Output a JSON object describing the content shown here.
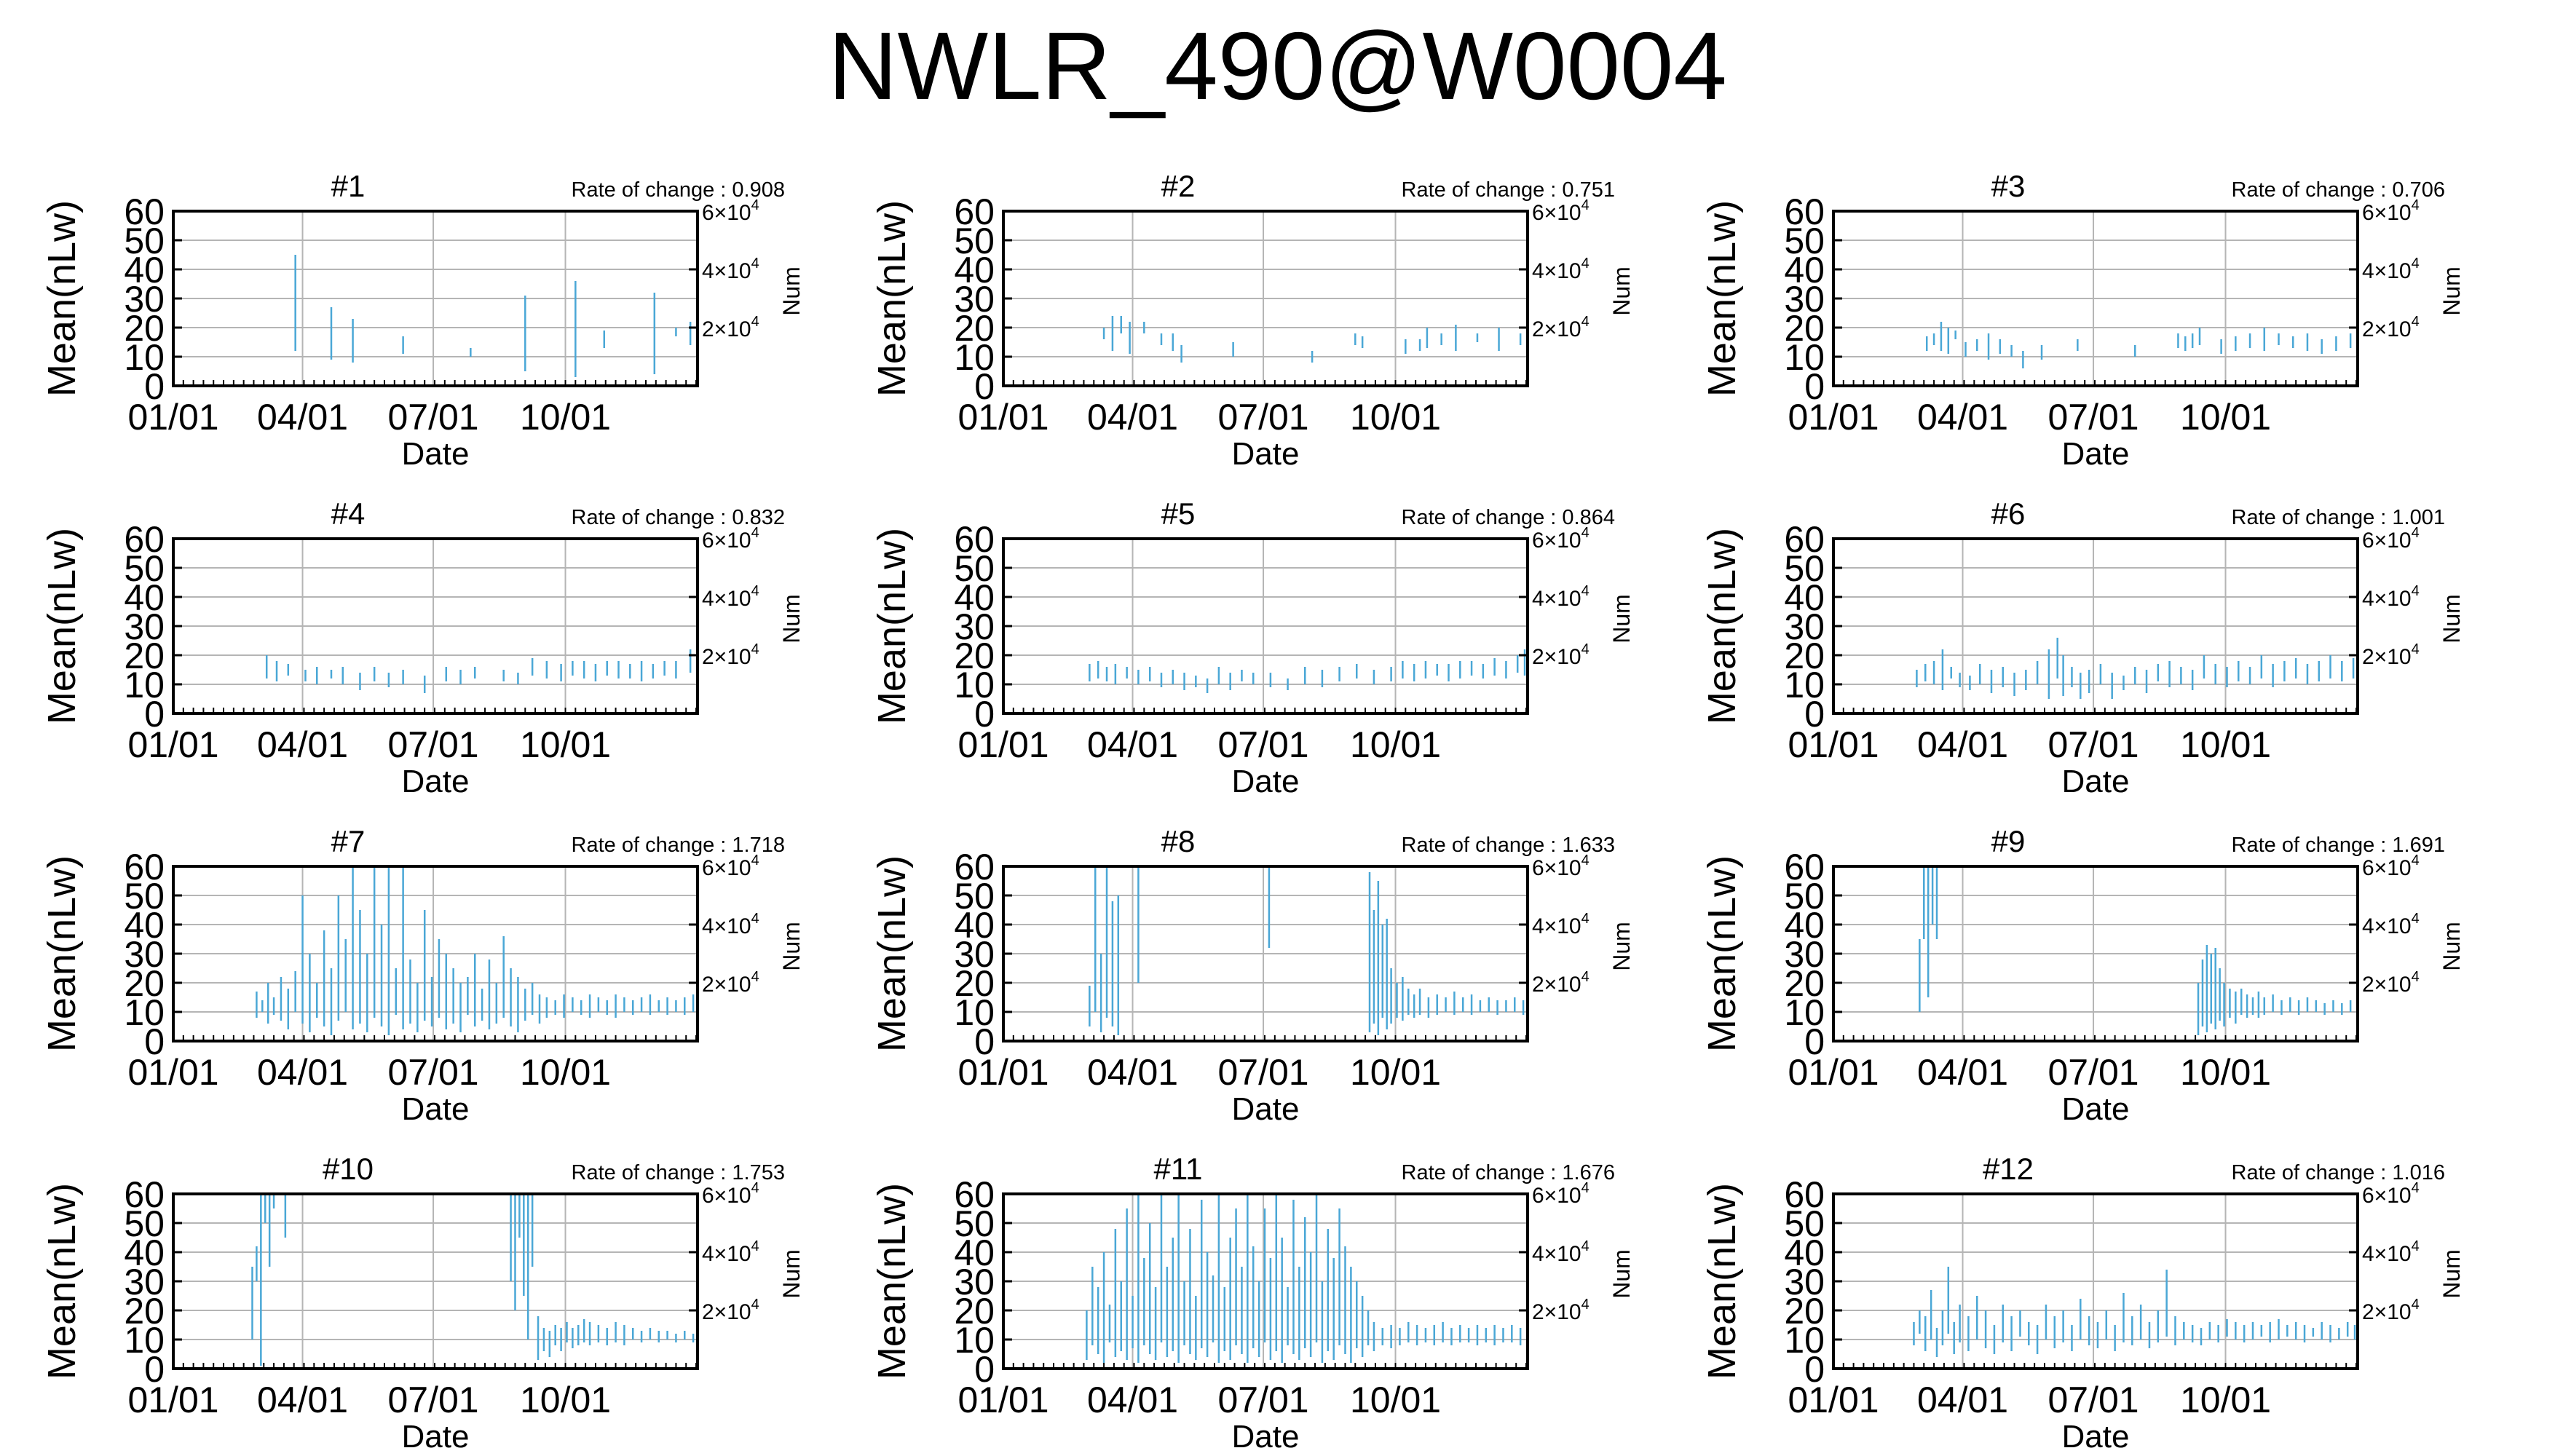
{
  "title": "NWLR_490@W0004",
  "colors": {
    "data": "#4aa7d6",
    "grid": "#b5b5b5",
    "frame": "#000000"
  },
  "common": {
    "ylabel": "Mean(nLw)",
    "y2label": "Num",
    "xlabel": "Date",
    "xticks": [
      "01/01",
      "04/01",
      "07/01",
      "10/01"
    ],
    "xtick_days": [
      0,
      90,
      181,
      273
    ],
    "xlim": [
      0,
      365
    ],
    "ylim": [
      0,
      60
    ],
    "yticks": [
      "0",
      "10",
      "20",
      "30",
      "40",
      "50",
      "60"
    ],
    "y2lim": [
      0,
      60000
    ],
    "y2ticks": [
      {
        "value": 20000,
        "mant": "2",
        "exp": "4"
      },
      {
        "value": 40000,
        "mant": "4",
        "exp": "4"
      },
      {
        "value": 60000,
        "mant": "6",
        "exp": "4"
      }
    ],
    "y2_base": "×10"
  },
  "chart_data": [
    {
      "type": "bar",
      "name": "#1",
      "rate_label": "Rate of change : 0.908",
      "x": [
        85,
        110,
        125,
        160,
        207,
        245,
        280,
        300,
        335,
        350,
        360
      ],
      "low": [
        12,
        9,
        8,
        11,
        10,
        5,
        3,
        13,
        4,
        17,
        14
      ],
      "high": [
        45,
        27,
        23,
        17,
        13,
        31,
        36,
        19,
        32,
        20,
        22
      ]
    },
    {
      "type": "bar",
      "name": "#2",
      "rate_label": "Rate of change : 0.751",
      "x": [
        70,
        76,
        82,
        88,
        98,
        110,
        118,
        124,
        160,
        215,
        245,
        250,
        280,
        290,
        295,
        305,
        315,
        330,
        345,
        360
      ],
      "low": [
        16,
        12,
        18,
        11,
        18,
        14,
        12,
        8,
        10,
        8,
        14,
        13,
        11,
        12,
        13,
        14,
        12,
        15,
        12,
        14
      ],
      "high": [
        20,
        24,
        24,
        22,
        22,
        18,
        18,
        14,
        15,
        12,
        18,
        17,
        16,
        16,
        20,
        18,
        21,
        18,
        20,
        18
      ]
    },
    {
      "type": "bar",
      "name": "#3",
      "rate_label": "Rate of change : 0.706",
      "x": [
        65,
        70,
        75,
        80,
        85,
        92,
        100,
        108,
        116,
        124,
        132,
        145,
        170,
        210,
        240,
        245,
        250,
        255,
        270,
        280,
        290,
        300,
        310,
        320,
        330,
        340,
        350,
        360
      ],
      "low": [
        12,
        14,
        12,
        11,
        16,
        10,
        12,
        9,
        11,
        10,
        6,
        9,
        12,
        10,
        13,
        12,
        13,
        14,
        11,
        12,
        13,
        12,
        14,
        13,
        12,
        11,
        12,
        13
      ],
      "high": [
        17,
        18,
        22,
        20,
        19,
        15,
        16,
        18,
        16,
        14,
        12,
        14,
        16,
        14,
        18,
        17,
        18,
        20,
        16,
        17,
        18,
        20,
        18,
        17,
        18,
        16,
        17,
        18
      ]
    },
    {
      "type": "bar",
      "name": "#4",
      "rate_label": "Rate of change : 0.832",
      "x": [
        65,
        72,
        80,
        92,
        100,
        110,
        118,
        130,
        140,
        150,
        160,
        175,
        190,
        200,
        210,
        230,
        240,
        250,
        260,
        270,
        278,
        286,
        294,
        302,
        310,
        318,
        326,
        334,
        342,
        350,
        360
      ],
      "low": [
        12,
        11,
        13,
        11,
        10,
        12,
        10,
        8,
        11,
        9,
        10,
        7,
        11,
        10,
        12,
        11,
        10,
        13,
        12,
        11,
        13,
        12,
        11,
        13,
        12,
        12,
        11,
        12,
        13,
        12,
        14
      ],
      "high": [
        20,
        18,
        17,
        15,
        16,
        15,
        16,
        14,
        16,
        14,
        15,
        13,
        16,
        15,
        16,
        15,
        14,
        19,
        18,
        17,
        18,
        18,
        17,
        18,
        18,
        17,
        18,
        17,
        18,
        18,
        22
      ]
    },
    {
      "type": "bar",
      "name": "#5",
      "rate_label": "Rate of change : 0.864",
      "x": [
        60,
        66,
        72,
        78,
        86,
        94,
        102,
        110,
        118,
        126,
        134,
        142,
        150,
        158,
        166,
        174,
        186,
        198,
        210,
        222,
        234,
        246,
        258,
        270,
        278,
        286,
        294,
        302,
        310,
        318,
        326,
        334,
        342,
        350,
        358,
        363
      ],
      "low": [
        11,
        12,
        11,
        10,
        12,
        10,
        11,
        9,
        10,
        8,
        9,
        7,
        10,
        8,
        11,
        10,
        9,
        8,
        10,
        9,
        11,
        12,
        10,
        11,
        12,
        11,
        12,
        13,
        11,
        12,
        13,
        12,
        13,
        12,
        14,
        13
      ],
      "high": [
        17,
        18,
        16,
        17,
        16,
        15,
        16,
        14,
        15,
        14,
        13,
        12,
        16,
        14,
        15,
        14,
        14,
        12,
        16,
        15,
        16,
        17,
        15,
        16,
        18,
        17,
        18,
        17,
        17,
        18,
        18,
        17,
        19,
        18,
        20,
        22
      ]
    },
    {
      "type": "bar",
      "name": "#6",
      "rate_label": "Rate of change : 1.001",
      "x": [
        58,
        64,
        70,
        76,
        82,
        88,
        95,
        102,
        110,
        118,
        126,
        134,
        142,
        150,
        156,
        160,
        166,
        172,
        178,
        186,
        194,
        202,
        210,
        218,
        226,
        234,
        242,
        250,
        258,
        266,
        274,
        282,
        290,
        298,
        306,
        314,
        322,
        330,
        338,
        346,
        354,
        362
      ],
      "low": [
        9,
        11,
        10,
        8,
        12,
        9,
        8,
        10,
        7,
        9,
        6,
        8,
        10,
        5,
        12,
        6,
        9,
        5,
        7,
        10,
        5,
        8,
        10,
        7,
        11,
        9,
        10,
        8,
        12,
        10,
        9,
        11,
        10,
        12,
        9,
        11,
        12,
        10,
        11,
        12,
        11,
        12
      ],
      "high": [
        15,
        17,
        18,
        22,
        16,
        14,
        13,
        17,
        15,
        16,
        14,
        15,
        18,
        22,
        26,
        20,
        16,
        14,
        15,
        17,
        14,
        13,
        16,
        15,
        17,
        18,
        16,
        15,
        20,
        17,
        16,
        18,
        16,
        20,
        17,
        18,
        19,
        17,
        18,
        20,
        18,
        19
      ]
    },
    {
      "type": "bar",
      "name": "#7",
      "rate_label": "Rate of change : 1.718",
      "x": [
        58,
        62,
        66,
        70,
        75,
        80,
        85,
        90,
        95,
        100,
        105,
        110,
        115,
        120,
        125,
        130,
        135,
        140,
        145,
        150,
        155,
        160,
        165,
        170,
        175,
        180,
        185,
        190,
        195,
        200,
        205,
        210,
        215,
        220,
        225,
        230,
        235,
        240,
        245,
        250,
        255,
        260,
        266,
        272,
        278,
        284,
        290,
        296,
        302,
        308,
        314,
        320,
        326,
        332,
        338,
        344,
        350,
        356,
        362
      ],
      "low": [
        8,
        10,
        6,
        9,
        7,
        4,
        10,
        6,
        3,
        8,
        5,
        2,
        7,
        10,
        4,
        6,
        3,
        8,
        5,
        2,
        9,
        4,
        6,
        3,
        7,
        5,
        8,
        4,
        6,
        3,
        9,
        5,
        7,
        4,
        6,
        8,
        5,
        3,
        7,
        9,
        6,
        8,
        9,
        8,
        10,
        9,
        8,
        10,
        9,
        8,
        10,
        9,
        10,
        9,
        10,
        9,
        10,
        9,
        10
      ],
      "high": [
        17,
        14,
        20,
        15,
        22,
        18,
        24,
        50,
        30,
        20,
        38,
        25,
        50,
        35,
        60,
        45,
        30,
        60,
        40,
        60,
        25,
        60,
        28,
        20,
        45,
        22,
        35,
        30,
        25,
        20,
        22,
        30,
        18,
        28,
        20,
        36,
        25,
        22,
        18,
        20,
        16,
        15,
        14,
        16,
        15,
        14,
        16,
        15,
        14,
        16,
        15,
        14,
        15,
        16,
        14,
        15,
        14,
        15,
        16
      ]
    },
    {
      "type": "bar",
      "name": "#8",
      "rate_label": "Rate of change : 1.633",
      "x": [
        60,
        64,
        68,
        72,
        76,
        80,
        94,
        185,
        255,
        258,
        261,
        264,
        267,
        270,
        274,
        278,
        282,
        286,
        290,
        296,
        302,
        308,
        314,
        320,
        326,
        332,
        338,
        344,
        350,
        356,
        362
      ],
      "low": [
        5,
        10,
        3,
        8,
        5,
        2,
        20,
        32,
        3,
        6,
        2,
        8,
        4,
        6,
        8,
        7,
        9,
        8,
        9,
        8,
        9,
        10,
        9,
        10,
        9,
        10,
        10,
        9,
        10,
        10,
        9
      ],
      "high": [
        19,
        60,
        30,
        60,
        48,
        50,
        60,
        60,
        58,
        45,
        55,
        40,
        42,
        25,
        20,
        22,
        18,
        16,
        18,
        15,
        16,
        15,
        17,
        15,
        16,
        14,
        15,
        14,
        14,
        15,
        14
      ]
    },
    {
      "type": "bar",
      "name": "#9",
      "rate_label": "Rate of change : 1.691",
      "x": [
        60,
        63,
        66,
        69,
        72,
        254,
        257,
        260,
        263,
        266,
        269,
        272,
        276,
        280,
        284,
        288,
        292,
        296,
        300,
        306,
        312,
        318,
        324,
        330,
        336,
        342,
        348,
        354,
        360
      ],
      "low": [
        10,
        35,
        15,
        40,
        35,
        2,
        5,
        3,
        6,
        4,
        7,
        5,
        8,
        6,
        9,
        8,
        9,
        8,
        9,
        10,
        9,
        10,
        9,
        10,
        10,
        9,
        10,
        9,
        10
      ],
      "high": [
        35,
        60,
        60,
        60,
        60,
        20,
        28,
        33,
        30,
        32,
        25,
        20,
        18,
        17,
        18,
        16,
        15,
        17,
        15,
        16,
        14,
        15,
        14,
        15,
        14,
        13,
        14,
        13,
        14
      ],
      "ylabel_hidden": false
    },
    {
      "type": "bar",
      "name": "#10",
      "rate_label": "Rate of change : 1.753",
      "x": [
        55,
        58,
        61,
        64,
        67,
        70,
        78,
        235,
        238,
        241,
        244,
        247,
        250,
        254,
        258,
        262,
        266,
        270,
        274,
        278,
        282,
        286,
        290,
        296,
        302,
        308,
        314,
        320,
        326,
        332,
        338,
        344,
        350,
        356,
        362
      ],
      "low": [
        10,
        30,
        1,
        50,
        35,
        55,
        45,
        30,
        20,
        45,
        25,
        10,
        35,
        3,
        6,
        4,
        8,
        6,
        9,
        7,
        8,
        9,
        8,
        9,
        8,
        9,
        8,
        10,
        9,
        10,
        9,
        10,
        9,
        10,
        9
      ],
      "high": [
        35,
        42,
        60,
        60,
        60,
        60,
        60,
        60,
        60,
        60,
        60,
        60,
        60,
        18,
        14,
        13,
        15,
        14,
        16,
        14,
        15,
        17,
        16,
        15,
        14,
        16,
        15,
        14,
        13,
        14,
        13,
        13,
        12,
        13,
        12
      ]
    },
    {
      "type": "bar",
      "name": "#11",
      "rate_label": "Rate of change : 1.676",
      "x": [
        58,
        62,
        66,
        70,
        74,
        78,
        82,
        86,
        90,
        94,
        98,
        102,
        106,
        110,
        114,
        118,
        122,
        126,
        130,
        134,
        138,
        142,
        146,
        150,
        154,
        158,
        162,
        166,
        170,
        174,
        178,
        182,
        186,
        190,
        194,
        198,
        202,
        206,
        210,
        214,
        218,
        222,
        226,
        230,
        234,
        238,
        242,
        246,
        250,
        254,
        258,
        264,
        270,
        276,
        282,
        288,
        294,
        300,
        306,
        312,
        318,
        324,
        330,
        336,
        342,
        348,
        354,
        360
      ],
      "low": [
        3,
        8,
        5,
        2,
        9,
        4,
        6,
        3,
        7,
        2,
        8,
        5,
        3,
        9,
        4,
        6,
        2,
        8,
        5,
        3,
        7,
        4,
        9,
        2,
        6,
        3,
        8,
        5,
        2,
        7,
        4,
        9,
        3,
        6,
        2,
        8,
        5,
        3,
        7,
        4,
        9,
        2,
        6,
        3,
        8,
        5,
        2,
        7,
        4,
        8,
        6,
        8,
        7,
        8,
        9,
        8,
        9,
        8,
        9,
        8,
        9,
        9,
        8,
        9,
        8,
        9,
        9,
        8
      ],
      "high": [
        20,
        35,
        28,
        40,
        22,
        48,
        30,
        55,
        25,
        60,
        38,
        50,
        28,
        60,
        35,
        45,
        60,
        30,
        48,
        25,
        58,
        40,
        32,
        60,
        28,
        45,
        55,
        35,
        60,
        42,
        30,
        55,
        38,
        60,
        45,
        28,
        58,
        35,
        52,
        40,
        60,
        30,
        48,
        38,
        55,
        42,
        35,
        30,
        25,
        20,
        16,
        14,
        15,
        14,
        16,
        15,
        14,
        15,
        16,
        14,
        15,
        14,
        15,
        14,
        15,
        14,
        15,
        14
      ]
    },
    {
      "type": "bar",
      "name": "#12",
      "rate_label": "Rate of change : 1.016",
      "x": [
        56,
        60,
        64,
        68,
        72,
        76,
        80,
        84,
        88,
        94,
        100,
        106,
        112,
        118,
        124,
        130,
        136,
        142,
        148,
        154,
        160,
        166,
        172,
        178,
        184,
        190,
        196,
        202,
        208,
        214,
        220,
        226,
        232,
        238,
        244,
        250,
        256,
        262,
        268,
        274,
        280,
        286,
        292,
        298,
        304,
        310,
        316,
        322,
        328,
        334,
        340,
        346,
        352,
        358,
        363
      ],
      "low": [
        8,
        12,
        6,
        10,
        4,
        8,
        12,
        5,
        9,
        6,
        10,
        7,
        5,
        9,
        6,
        11,
        8,
        5,
        10,
        7,
        9,
        6,
        10,
        8,
        7,
        10,
        6,
        9,
        8,
        10,
        7,
        9,
        11,
        8,
        10,
        9,
        8,
        10,
        9,
        11,
        10,
        9,
        10,
        11,
        9,
        10,
        11,
        10,
        9,
        11,
        10,
        9,
        10,
        11,
        10
      ],
      "high": [
        16,
        20,
        18,
        27,
        14,
        20,
        35,
        16,
        22,
        18,
        25,
        20,
        15,
        22,
        18,
        20,
        16,
        15,
        22,
        18,
        20,
        15,
        24,
        18,
        16,
        20,
        15,
        26,
        18,
        22,
        16,
        20,
        34,
        18,
        16,
        15,
        14,
        16,
        15,
        17,
        16,
        15,
        16,
        15,
        16,
        17,
        15,
        16,
        15,
        14,
        16,
        15,
        14,
        16,
        15
      ]
    }
  ]
}
